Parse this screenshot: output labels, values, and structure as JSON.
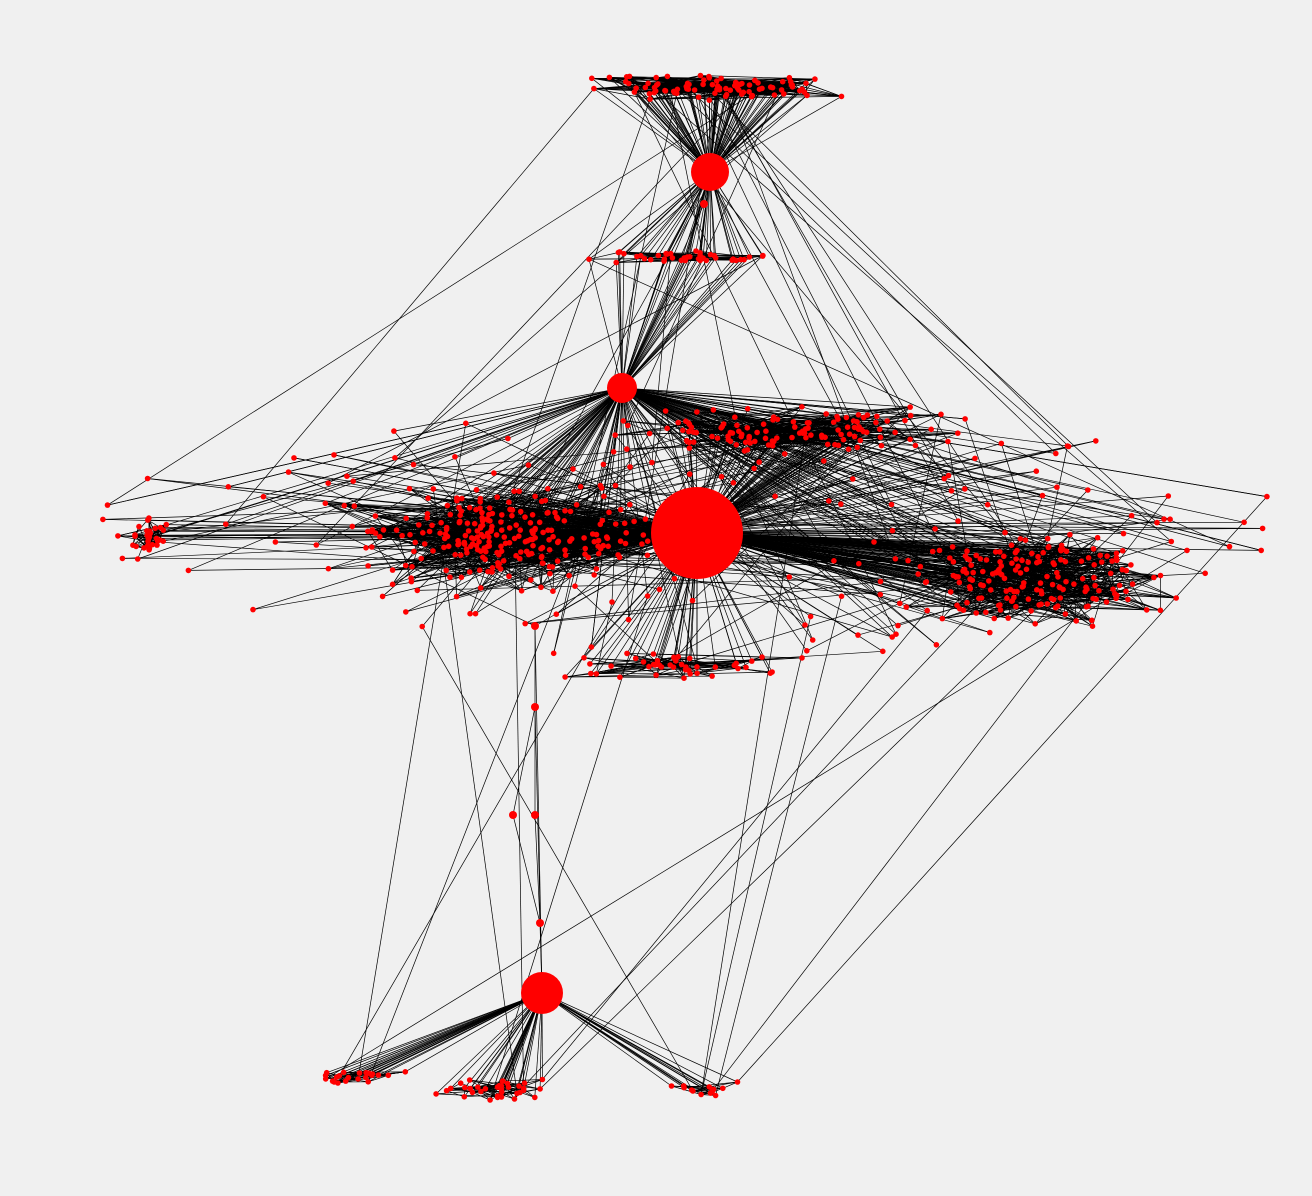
{
  "diagram": {
    "type": "network-graph",
    "background_color": "#f0f0f0",
    "node_color": "#ff0000",
    "edge_color": "#000000",
    "labels_visible": false,
    "hubs": [
      {
        "id": "hub-central",
        "role": "main-hub"
      },
      {
        "id": "hub-top",
        "role": "top-cluster-hub"
      },
      {
        "id": "hub-upper-mid",
        "role": "bridge-hub"
      },
      {
        "id": "hub-bottom",
        "role": "bottom-cluster-hub"
      }
    ],
    "clusters": [
      {
        "id": "cluster-top-fan"
      },
      {
        "id": "cluster-upper-band"
      },
      {
        "id": "cluster-far-left"
      },
      {
        "id": "cluster-center-left"
      },
      {
        "id": "cluster-upper-right"
      },
      {
        "id": "cluster-right"
      },
      {
        "id": "cluster-lower-band"
      },
      {
        "id": "cluster-bottom-left"
      },
      {
        "id": "cluster-bottom-center"
      },
      {
        "id": "cluster-bottom-right"
      }
    ]
  }
}
